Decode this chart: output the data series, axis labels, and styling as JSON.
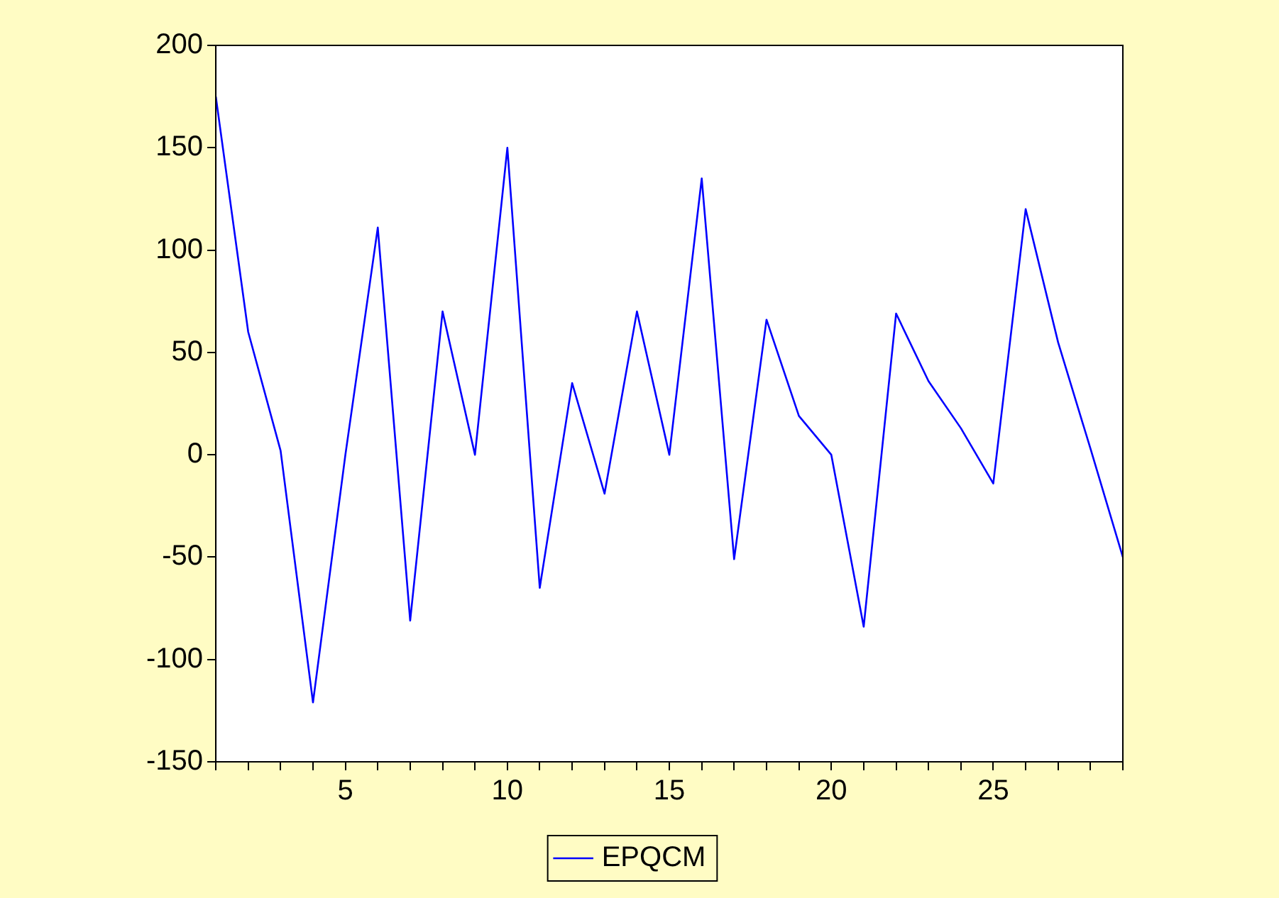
{
  "chart_data": {
    "type": "line",
    "x": [
      1,
      2,
      3,
      4,
      5,
      6,
      7,
      8,
      9,
      10,
      11,
      12,
      13,
      14,
      15,
      16,
      17,
      18,
      19,
      20,
      21,
      22,
      23,
      24,
      25,
      26,
      27,
      28,
      29
    ],
    "series": [
      {
        "name": "EPQCM",
        "color": "#0000ff",
        "values": [
          175,
          60,
          2,
          -121,
          0,
          111,
          -81,
          70,
          0,
          150,
          -65,
          35,
          -19,
          70,
          0,
          135,
          -51,
          66,
          19,
          0,
          -84,
          69,
          36,
          13,
          -14,
          120,
          55,
          3,
          -50
        ]
      }
    ],
    "xlim": [
      1,
      29
    ],
    "xticks": [
      {
        "value": 1,
        "label": null
      },
      {
        "value": 2,
        "label": null
      },
      {
        "value": 3,
        "label": null
      },
      {
        "value": 4,
        "label": null
      },
      5,
      {
        "value": 6,
        "label": null
      },
      {
        "value": 7,
        "label": null
      },
      {
        "value": 8,
        "label": null
      },
      {
        "value": 9,
        "label": null
      },
      10,
      {
        "value": 11,
        "label": null
      },
      {
        "value": 12,
        "label": null
      },
      {
        "value": 13,
        "label": null
      },
      {
        "value": 14,
        "label": null
      },
      15,
      {
        "value": 16,
        "label": null
      },
      {
        "value": 17,
        "label": null
      },
      {
        "value": 18,
        "label": null
      },
      {
        "value": 19,
        "label": null
      },
      20,
      {
        "value": 21,
        "label": null
      },
      {
        "value": 22,
        "label": null
      },
      {
        "value": 23,
        "label": null
      },
      {
        "value": 24,
        "label": null
      },
      25,
      {
        "value": 26,
        "label": null
      },
      {
        "value": 27,
        "label": null
      },
      {
        "value": 28,
        "label": null
      },
      {
        "value": 29,
        "label": null
      }
    ],
    "ylim": [
      -150,
      200
    ],
    "yticks": [
      -150,
      -100,
      -50,
      0,
      50,
      100,
      150,
      200
    ],
    "legend": "bottom",
    "marker": "none",
    "line_style": "solid"
  }
}
